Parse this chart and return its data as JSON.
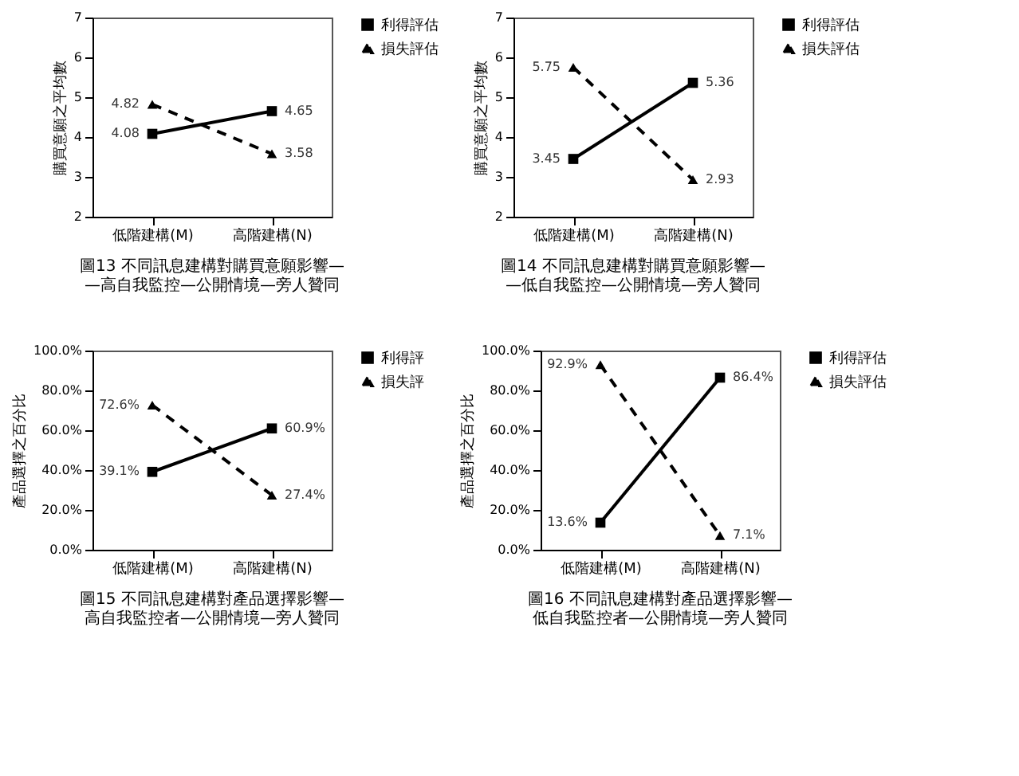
{
  "chart_data": [
    {
      "type": "line",
      "title": "圖13 不同訊息建構對購買意願影響——高自我監控—公開情境—旁人贊同",
      "ylabel": "購買意願之平均數",
      "categories": [
        "低階建構(M)",
        "高階建構(N)"
      ],
      "series": [
        {
          "name": "利得評估",
          "color": "#000000",
          "marker": "square",
          "line_style": "solid",
          "values": [
            4.08,
            4.65
          ]
        },
        {
          "name": "損失評估",
          "color": "#000000",
          "marker": "triangle",
          "line_style": "dashed",
          "values": [
            4.82,
            3.58
          ]
        }
      ],
      "ylim": [
        2,
        7
      ],
      "yticks": [
        2,
        3,
        4,
        5,
        6,
        7
      ],
      "data_labels": true,
      "legend": "right",
      "grid": false
    },
    {
      "type": "line",
      "title": "圖14 不同訊息建構對購買意願影響——低自我監控—公開情境—旁人贊同",
      "ylabel": "購買意願之平均數",
      "categories": [
        "低階建構(M)",
        "高階建構(N)"
      ],
      "series": [
        {
          "name": "利得評估",
          "color": "#000000",
          "marker": "square",
          "line_style": "solid",
          "values": [
            3.45,
            5.36
          ]
        },
        {
          "name": "損失評估",
          "color": "#000000",
          "marker": "triangle",
          "line_style": "dashed",
          "values": [
            5.75,
            2.93
          ]
        }
      ],
      "ylim": [
        2,
        7
      ],
      "yticks": [
        2,
        3,
        4,
        5,
        6,
        7
      ],
      "data_labels": true,
      "legend": "right",
      "grid": false
    },
    {
      "type": "line",
      "title": "圖15 不同訊息建構對產品選擇影響—高自我監控者—公開情境—旁人贊同",
      "ylabel": "產品選擇之百分比",
      "categories": [
        "低階建構(M)",
        "高階建構(N)"
      ],
      "series": [
        {
          "name": "利得評",
          "color": "#000000",
          "marker": "square",
          "line_style": "solid",
          "values": [
            39.1,
            60.9
          ],
          "value_labels": [
            "39.1%",
            "60.9%"
          ]
        },
        {
          "name": "損失評",
          "color": "#000000",
          "marker": "triangle",
          "line_style": "dashed",
          "values": [
            72.6,
            27.4
          ],
          "value_labels": [
            "72.6%",
            "27.4%"
          ]
        }
      ],
      "ylim": [
        0,
        100
      ],
      "yticks": [
        {
          "value": 0,
          "label": "0.0%"
        },
        {
          "value": 20,
          "label": "20.0%"
        },
        {
          "value": 40,
          "label": "40.0%"
        },
        {
          "value": 60,
          "label": "60.0%"
        },
        {
          "value": 80,
          "label": "80.0%"
        },
        {
          "value": 100,
          "label": "100.0%"
        }
      ],
      "legend": "right",
      "grid": false
    },
    {
      "type": "line",
      "title": "圖16 不同訊息建構對產品選擇影響—低自我監控者—公開情境—旁人贊同",
      "ylabel": "產品選擇之百分比",
      "categories": [
        "低階建構(M)",
        "高階建構(N)"
      ],
      "series": [
        {
          "name": "利得評估",
          "color": "#000000",
          "marker": "square",
          "line_style": "solid",
          "values": [
            13.6,
            86.4
          ],
          "value_labels": [
            "13.6%",
            "86.4%"
          ]
        },
        {
          "name": "損失評估",
          "color": "#000000",
          "marker": "triangle",
          "line_style": "dashed",
          "values": [
            92.9,
            7.1
          ],
          "value_labels": [
            "92.9%",
            "7.1%"
          ]
        }
      ],
      "ylim": [
        0,
        100
      ],
      "yticks": [
        {
          "value": 0,
          "label": "0.0%"
        },
        {
          "value": 20,
          "label": "20.0%"
        },
        {
          "value": 40,
          "label": "40.0%"
        },
        {
          "value": 60,
          "label": "60.0%"
        },
        {
          "value": 80,
          "label": "80.0%"
        },
        {
          "value": 100,
          "label": "100.0%"
        }
      ],
      "legend": "right",
      "grid": false
    }
  ]
}
